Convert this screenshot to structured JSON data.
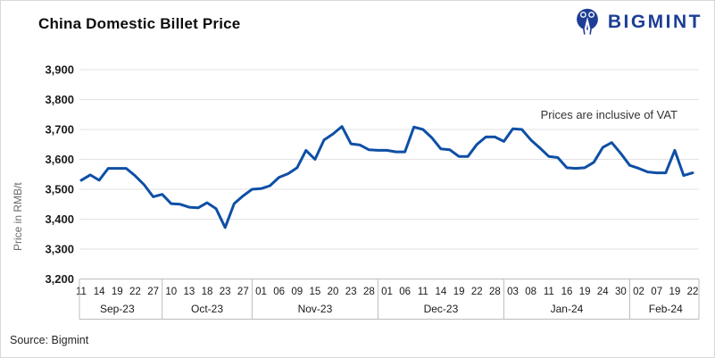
{
  "header": {
    "title": "China Domestic Billet Price",
    "brand": "BIGMINT"
  },
  "footer": {
    "source": "Source: Bigmint"
  },
  "colors": {
    "line": "#0e4fa5",
    "brand_navy": "#1d3e96",
    "grid": "#e2e2e2",
    "axis_box": "#bdbdbd",
    "tick_text": "#1a1a1a"
  },
  "chart_data": {
    "type": "line",
    "title": "China Domestic Billet Price",
    "ylabel": "Price in RMB/t",
    "annotation": "Prices are inclusive of VAT",
    "legend": [],
    "grid": "horizontal",
    "ylim": [
      3200,
      3900
    ],
    "ytick_step": 100,
    "tick_every": 2,
    "months": [
      {
        "label": "Sep-23",
        "days": [
          "11",
          "14",
          "19",
          "22",
          "27"
        ]
      },
      {
        "label": "Oct-23",
        "days": [
          "10",
          "13",
          "18",
          "23",
          "27"
        ]
      },
      {
        "label": "Nov-23",
        "days": [
          "01",
          "06",
          "09",
          "15",
          "20",
          "23",
          "28"
        ]
      },
      {
        "label": "Dec-23",
        "days": [
          "01",
          "06",
          "11",
          "14",
          "19",
          "22",
          "28"
        ]
      },
      {
        "label": "Jan-24",
        "days": [
          "03",
          "08",
          "11",
          "16",
          "19",
          "24",
          "30"
        ]
      },
      {
        "label": "Feb-24",
        "days": [
          "02",
          "07",
          "19",
          "22"
        ]
      }
    ],
    "values": [
      3530,
      3548,
      3530,
      3570,
      3570,
      3570,
      3545,
      3515,
      3475,
      3483,
      3452,
      3450,
      3440,
      3438,
      3455,
      3435,
      3372,
      3452,
      3478,
      3500,
      3502,
      3512,
      3540,
      3552,
      3572,
      3630,
      3600,
      3665,
      3685,
      3710,
      3652,
      3648,
      3632,
      3630,
      3630,
      3625,
      3625,
      3708,
      3700,
      3672,
      3635,
      3632,
      3610,
      3610,
      3650,
      3675,
      3675,
      3660,
      3702,
      3700,
      3665,
      3638,
      3610,
      3606,
      3572,
      3570,
      3572,
      3590,
      3640,
      3656,
      3620,
      3580,
      3570,
      3558,
      3555,
      3555,
      3630,
      3546,
      3555
    ]
  }
}
